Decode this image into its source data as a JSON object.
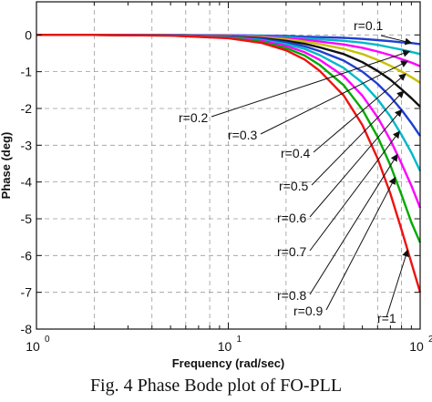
{
  "caption": "Fig. 4   Phase Bode plot of FO-PLL",
  "chart_data": {
    "type": "line",
    "xlabel": "Frequency  (rad/sec)",
    "ylabel": "Phase (deg)",
    "xscale": "log",
    "xlim": [
      1,
      100
    ],
    "ylim": [
      -8,
      0.9
    ],
    "grid": "dashed",
    "xticks": [
      {
        "value": 1,
        "base": "10",
        "exp": "0"
      },
      {
        "value": 10,
        "base": "10",
        "exp": "1"
      },
      {
        "value": 100,
        "base": "10",
        "exp": "2"
      }
    ],
    "yticks": [
      "0",
      "-1",
      "-2",
      "-3",
      "-4",
      "-5",
      "-6",
      "-7",
      "-8"
    ],
    "yticks_values": [
      0,
      -1,
      -2,
      -3,
      -4,
      -5,
      -6,
      -7,
      -8
    ],
    "x": [
      1,
      2,
      5,
      10,
      15,
      20,
      25,
      30,
      40,
      50,
      60,
      70,
      80,
      90,
      100
    ],
    "series": [
      {
        "name": "r=0.1",
        "color": "#1f3fd0",
        "values": [
          0,
          0,
          0,
          -0.01,
          -0.02,
          -0.03,
          -0.05,
          -0.06,
          -0.08,
          -0.11,
          -0.14,
          -0.17,
          -0.2,
          -0.22,
          -0.25
        ]
      },
      {
        "name": "r=0.2",
        "color": "#00b8c8",
        "values": [
          0,
          0,
          0,
          -0.02,
          -0.03,
          -0.06,
          -0.09,
          -0.12,
          -0.16,
          -0.21,
          -0.27,
          -0.34,
          -0.4,
          -0.46,
          -0.52
        ]
      },
      {
        "name": "r=0.3",
        "color": "#ff00ff",
        "values": [
          0,
          0,
          -0.01,
          -0.02,
          -0.05,
          -0.09,
          -0.13,
          -0.18,
          -0.26,
          -0.35,
          -0.45,
          -0.55,
          -0.66,
          -0.75,
          -0.85
        ]
      },
      {
        "name": "r=0.4",
        "color": "#c8c000",
        "values": [
          0,
          0,
          -0.01,
          -0.03,
          -0.07,
          -0.12,
          -0.18,
          -0.25,
          -0.38,
          -0.52,
          -0.68,
          -0.84,
          -1.0,
          -1.15,
          -1.3
        ]
      },
      {
        "name": "r=0.5",
        "color": "#111111",
        "values": [
          0,
          0,
          -0.01,
          -0.04,
          -0.09,
          -0.16,
          -0.24,
          -0.34,
          -0.52,
          -0.74,
          -0.98,
          -1.22,
          -1.48,
          -1.72,
          -1.95
        ]
      },
      {
        "name": "r=0.6",
        "color": "#1f3fd0",
        "values": [
          0,
          0,
          -0.01,
          -0.05,
          -0.11,
          -0.2,
          -0.31,
          -0.44,
          -0.7,
          -1.0,
          -1.33,
          -1.68,
          -2.04,
          -2.4,
          -2.75
        ]
      },
      {
        "name": "r=0.7",
        "color": "#00b8c8",
        "values": [
          0,
          0,
          -0.01,
          -0.06,
          -0.14,
          -0.25,
          -0.38,
          -0.55,
          -0.9,
          -1.3,
          -1.75,
          -2.22,
          -2.72,
          -3.2,
          -3.7
        ]
      },
      {
        "name": "r=0.8",
        "color": "#ff00ff",
        "values": [
          0,
          0,
          -0.01,
          -0.07,
          -0.16,
          -0.3,
          -0.47,
          -0.68,
          -1.12,
          -1.65,
          -2.24,
          -2.86,
          -3.5,
          -4.1,
          -4.7
        ]
      },
      {
        "name": "r=0.9",
        "color": "#00aa00",
        "values": [
          0,
          0,
          -0.02,
          -0.08,
          -0.19,
          -0.36,
          -0.56,
          -0.82,
          -1.37,
          -2.03,
          -2.77,
          -3.55,
          -4.35,
          -5.1,
          -5.65
        ]
      },
      {
        "name": "r=1",
        "color": "#ee1111",
        "values": [
          0,
          0,
          -0.02,
          -0.09,
          -0.22,
          -0.42,
          -0.67,
          -0.98,
          -1.65,
          -2.45,
          -3.36,
          -4.32,
          -5.3,
          -6.2,
          -7.0
        ]
      }
    ],
    "annotations": [
      "r=0.1",
      "r=0.2",
      "r=0.3",
      "r=0.4",
      "r=0.5",
      "r=0.6",
      "r=0.7",
      "r=0.8",
      "r=0.9",
      "r=1"
    ]
  }
}
